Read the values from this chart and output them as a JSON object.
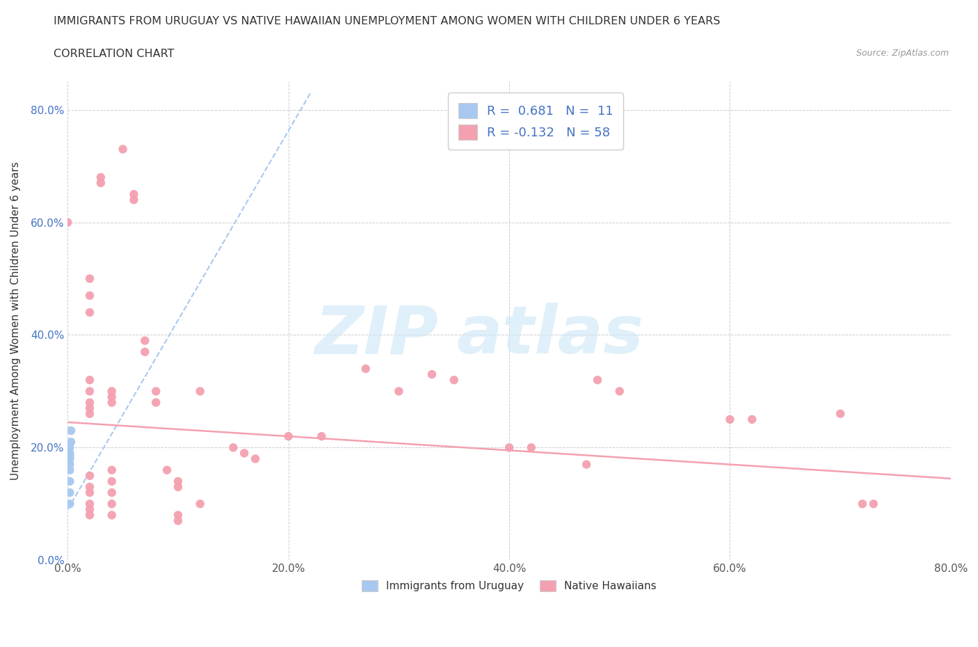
{
  "title": "IMMIGRANTS FROM URUGUAY VS NATIVE HAWAIIAN UNEMPLOYMENT AMONG WOMEN WITH CHILDREN UNDER 6 YEARS",
  "subtitle": "CORRELATION CHART",
  "source": "Source: ZipAtlas.com",
  "ylabel": "Unemployment Among Women with Children Under 6 years",
  "xlim": [
    0.0,
    0.8
  ],
  "ylim": [
    0.0,
    0.85
  ],
  "xticks": [
    0.0,
    0.2,
    0.4,
    0.6,
    0.8
  ],
  "yticks": [
    0.0,
    0.2,
    0.4,
    0.6,
    0.8
  ],
  "xticklabels": [
    "0.0%",
    "20.0%",
    "40.0%",
    "60.0%",
    "80.0%"
  ],
  "yticklabels": [
    "0.0%",
    "20.0%",
    "40.0%",
    "60.0%",
    "80.0%"
  ],
  "legend_blue_R": "0.681",
  "legend_blue_N": "11",
  "legend_pink_R": "-0.132",
  "legend_pink_N": "58",
  "blue_color": "#a8c8f0",
  "pink_color": "#f4a0b0",
  "blue_scatter": [
    [
      0.003,
      0.23
    ],
    [
      0.003,
      0.21
    ],
    [
      0.002,
      0.2
    ],
    [
      0.002,
      0.19
    ],
    [
      0.002,
      0.185
    ],
    [
      0.002,
      0.18
    ],
    [
      0.002,
      0.17
    ],
    [
      0.002,
      0.16
    ],
    [
      0.002,
      0.14
    ],
    [
      0.002,
      0.12
    ],
    [
      0.002,
      0.1
    ]
  ],
  "blue_trendline": [
    [
      0.0,
      0.09
    ],
    [
      0.22,
      0.83
    ]
  ],
  "pink_trendline": [
    [
      0.0,
      0.245
    ],
    [
      0.8,
      0.145
    ]
  ],
  "pink_scatter": [
    [
      0.0,
      0.6
    ],
    [
      0.02,
      0.5
    ],
    [
      0.02,
      0.47
    ],
    [
      0.02,
      0.44
    ],
    [
      0.02,
      0.32
    ],
    [
      0.02,
      0.3
    ],
    [
      0.02,
      0.28
    ],
    [
      0.02,
      0.27
    ],
    [
      0.02,
      0.26
    ],
    [
      0.02,
      0.15
    ],
    [
      0.02,
      0.13
    ],
    [
      0.02,
      0.12
    ],
    [
      0.02,
      0.1
    ],
    [
      0.02,
      0.09
    ],
    [
      0.02,
      0.08
    ],
    [
      0.03,
      0.68
    ],
    [
      0.03,
      0.67
    ],
    [
      0.04,
      0.3
    ],
    [
      0.04,
      0.29
    ],
    [
      0.04,
      0.28
    ],
    [
      0.04,
      0.16
    ],
    [
      0.04,
      0.14
    ],
    [
      0.04,
      0.12
    ],
    [
      0.04,
      0.1
    ],
    [
      0.04,
      0.08
    ],
    [
      0.05,
      0.73
    ],
    [
      0.06,
      0.65
    ],
    [
      0.06,
      0.64
    ],
    [
      0.07,
      0.39
    ],
    [
      0.07,
      0.37
    ],
    [
      0.08,
      0.3
    ],
    [
      0.08,
      0.28
    ],
    [
      0.09,
      0.16
    ],
    [
      0.1,
      0.14
    ],
    [
      0.1,
      0.13
    ],
    [
      0.1,
      0.08
    ],
    [
      0.1,
      0.07
    ],
    [
      0.12,
      0.3
    ],
    [
      0.12,
      0.1
    ],
    [
      0.15,
      0.2
    ],
    [
      0.16,
      0.19
    ],
    [
      0.17,
      0.18
    ],
    [
      0.2,
      0.22
    ],
    [
      0.23,
      0.22
    ],
    [
      0.27,
      0.34
    ],
    [
      0.3,
      0.3
    ],
    [
      0.33,
      0.33
    ],
    [
      0.35,
      0.32
    ],
    [
      0.4,
      0.2
    ],
    [
      0.42,
      0.2
    ],
    [
      0.47,
      0.17
    ],
    [
      0.48,
      0.32
    ],
    [
      0.5,
      0.3
    ],
    [
      0.6,
      0.25
    ],
    [
      0.62,
      0.25
    ],
    [
      0.7,
      0.26
    ],
    [
      0.72,
      0.1
    ],
    [
      0.73,
      0.1
    ]
  ]
}
